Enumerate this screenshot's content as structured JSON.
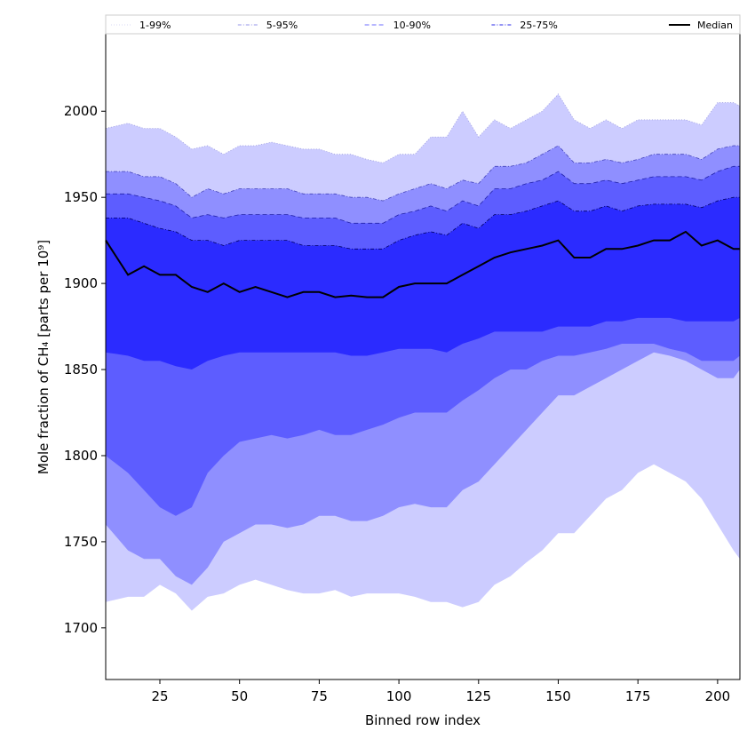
{
  "chart_data": {
    "type": "area",
    "title": "",
    "xlabel": "Binned row index",
    "ylabel": "Mole fraction of CH₄ [parts per 10⁹]",
    "xlim": [
      8,
      207
    ],
    "ylim": [
      1670,
      2045
    ],
    "xticks": [
      25,
      50,
      75,
      100,
      125,
      150,
      175,
      200
    ],
    "yticks": [
      1700,
      1750,
      1800,
      1850,
      1900,
      1950,
      2000
    ],
    "grid": false,
    "legend_position": "top",
    "legend": [
      {
        "label": "1-99%",
        "style": "dotted",
        "color": "#e0e0f6"
      },
      {
        "label": "5-95%",
        "style": "dashdot",
        "color": "#aaaaee"
      },
      {
        "label": "10-90%",
        "style": "dashed",
        "color": "#8a8aff"
      },
      {
        "label": "25-75%",
        "style": "dashdot",
        "color": "#5555ee"
      },
      {
        "label": "Median",
        "style": "solid",
        "color": "#000000"
      }
    ],
    "band_colors": {
      "p1_99": "#ccccff",
      "p5_95": "#8f8fff",
      "p10_90": "#5d5dff",
      "p25_75": "#2b2bff"
    },
    "x": [
      8,
      15,
      20,
      25,
      30,
      35,
      40,
      45,
      50,
      55,
      60,
      65,
      70,
      75,
      80,
      85,
      90,
      95,
      100,
      105,
      110,
      115,
      120,
      125,
      130,
      135,
      140,
      145,
      150,
      155,
      160,
      165,
      170,
      175,
      180,
      185,
      190,
      195,
      200,
      205,
      207
    ],
    "series": [
      {
        "name": "1-99%",
        "role": "band",
        "lower": [
          1715,
          1718,
          1718,
          1725,
          1720,
          1710,
          1718,
          1720,
          1725,
          1728,
          1725,
          1722,
          1720,
          1720,
          1722,
          1718,
          1720,
          1720,
          1720,
          1718,
          1715,
          1715,
          1712,
          1715,
          1725,
          1730,
          1738,
          1745,
          1755,
          1755,
          1765,
          1775,
          1780,
          1790,
          1795,
          1790,
          1785,
          1775,
          1760,
          1745,
          1740
        ],
        "upper": [
          1990,
          1993,
          1990,
          1990,
          1985,
          1978,
          1980,
          1975,
          1980,
          1980,
          1982,
          1980,
          1978,
          1978,
          1975,
          1975,
          1972,
          1970,
          1975,
          1975,
          1985,
          1985,
          2000,
          1985,
          1995,
          1990,
          1995,
          2000,
          2010,
          1995,
          1990,
          1995,
          1990,
          1995,
          1995,
          1995,
          1995,
          1992,
          2005,
          2005,
          2003
        ]
      },
      {
        "name": "5-95%",
        "role": "band",
        "lower": [
          1760,
          1745,
          1740,
          1740,
          1730,
          1725,
          1735,
          1750,
          1755,
          1760,
          1760,
          1758,
          1760,
          1765,
          1765,
          1762,
          1762,
          1765,
          1770,
          1772,
          1770,
          1770,
          1780,
          1785,
          1795,
          1805,
          1815,
          1825,
          1835,
          1835,
          1840,
          1845,
          1850,
          1855,
          1860,
          1858,
          1855,
          1850,
          1845,
          1845,
          1850
        ],
        "upper": [
          1965,
          1965,
          1962,
          1962,
          1958,
          1950,
          1955,
          1952,
          1955,
          1955,
          1955,
          1955,
          1952,
          1952,
          1952,
          1950,
          1950,
          1948,
          1952,
          1955,
          1958,
          1955,
          1960,
          1958,
          1968,
          1968,
          1970,
          1975,
          1980,
          1970,
          1970,
          1972,
          1970,
          1972,
          1975,
          1975,
          1975,
          1972,
          1978,
          1980,
          1980
        ]
      },
      {
        "name": "10-90%",
        "role": "band",
        "lower": [
          1800,
          1790,
          1780,
          1770,
          1765,
          1770,
          1790,
          1800,
          1808,
          1810,
          1812,
          1810,
          1812,
          1815,
          1812,
          1812,
          1815,
          1818,
          1822,
          1825,
          1825,
          1825,
          1832,
          1838,
          1845,
          1850,
          1850,
          1855,
          1858,
          1858,
          1860,
          1862,
          1865,
          1865,
          1865,
          1862,
          1860,
          1855,
          1855,
          1855,
          1858
        ],
        "upper": [
          1952,
          1952,
          1950,
          1948,
          1945,
          1938,
          1940,
          1938,
          1940,
          1940,
          1940,
          1940,
          1938,
          1938,
          1938,
          1935,
          1935,
          1935,
          1940,
          1942,
          1945,
          1942,
          1948,
          1945,
          1955,
          1955,
          1958,
          1960,
          1965,
          1958,
          1958,
          1960,
          1958,
          1960,
          1962,
          1962,
          1962,
          1960,
          1965,
          1968,
          1968
        ]
      },
      {
        "name": "25-75%",
        "role": "band",
        "lower": [
          1860,
          1858,
          1855,
          1855,
          1852,
          1850,
          1855,
          1858,
          1860,
          1860,
          1860,
          1860,
          1860,
          1860,
          1860,
          1858,
          1858,
          1860,
          1862,
          1862,
          1862,
          1860,
          1865,
          1868,
          1872,
          1872,
          1872,
          1872,
          1875,
          1875,
          1875,
          1878,
          1878,
          1880,
          1880,
          1880,
          1878,
          1878,
          1878,
          1878,
          1880
        ],
        "upper": [
          1938,
          1938,
          1935,
          1932,
          1930,
          1925,
          1925,
          1922,
          1925,
          1925,
          1925,
          1925,
          1922,
          1922,
          1922,
          1920,
          1920,
          1920,
          1925,
          1928,
          1930,
          1928,
          1935,
          1932,
          1940,
          1940,
          1942,
          1945,
          1948,
          1942,
          1942,
          1945,
          1942,
          1945,
          1946,
          1946,
          1946,
          1944,
          1948,
          1950,
          1950
        ]
      },
      {
        "name": "Median",
        "role": "line",
        "values": [
          1925,
          1905,
          1910,
          1905,
          1905,
          1898,
          1895,
          1900,
          1895,
          1898,
          1895,
          1892,
          1895,
          1895,
          1892,
          1893,
          1892,
          1892,
          1898,
          1900,
          1900,
          1900,
          1905,
          1910,
          1915,
          1918,
          1920,
          1922,
          1925,
          1915,
          1915,
          1920,
          1920,
          1922,
          1925,
          1925,
          1930,
          1922,
          1925,
          1920,
          1920
        ]
      }
    ]
  }
}
